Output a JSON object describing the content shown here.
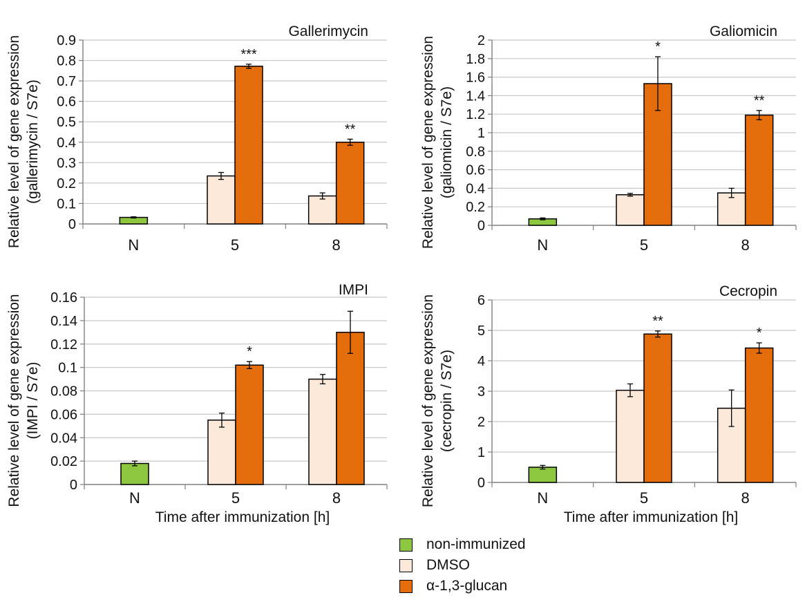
{
  "colors": {
    "non_immunized": "#8dc63f",
    "dmso": "#fde9d9",
    "glucan": "#e46c0a",
    "grid": "#c8c8c8",
    "axis": "#808080"
  },
  "chart_data": [
    {
      "type": "bar",
      "title": "Gallerimycin",
      "ylabel": "Relative level of gene expression",
      "ylabel2": "(gallerimycin / S7e)",
      "xlabel": "",
      "categories": [
        "N",
        "5",
        "8"
      ],
      "ylim": [
        0,
        0.9
      ],
      "yticks": [
        "0",
        "0.1",
        "0.2",
        "0.3",
        "0.4",
        "0.5",
        "0.6",
        "0.7",
        "0.8",
        "0.9"
      ],
      "grid": true,
      "series": [
        {
          "name": "non-immunized",
          "values": [
            0.032,
            null,
            null
          ],
          "errors": [
            0.003,
            null,
            null
          ]
        },
        {
          "name": "DMSO",
          "values": [
            null,
            0.235,
            0.137
          ],
          "errors": [
            null,
            0.017,
            0.015
          ]
        },
        {
          "name": "α-1,3-glucan",
          "values": [
            null,
            0.772,
            0.4
          ],
          "errors": [
            null,
            0.01,
            0.015
          ]
        }
      ],
      "annotations": [
        {
          "category": "5",
          "series": "α-1,3-glucan",
          "text": "***"
        },
        {
          "category": "8",
          "series": "α-1,3-glucan",
          "text": "**"
        }
      ]
    },
    {
      "type": "bar",
      "title": "Galiomicin",
      "ylabel": "Relative level of gene expression",
      "ylabel2": "(galiomicin / S7e)",
      "xlabel": "",
      "categories": [
        "N",
        "5",
        "8"
      ],
      "ylim": [
        0,
        2
      ],
      "yticks": [
        "0",
        "0.2",
        "0.4",
        "0.6",
        "0.8",
        "1",
        "1.2",
        "1.4",
        "1.6",
        "1.8",
        "2"
      ],
      "grid": true,
      "series": [
        {
          "name": "non-immunized",
          "values": [
            0.07,
            null,
            null
          ],
          "errors": [
            0.01,
            null,
            null
          ]
        },
        {
          "name": "DMSO",
          "values": [
            null,
            0.33,
            0.35
          ],
          "errors": [
            null,
            0.015,
            0.05
          ]
        },
        {
          "name": "α-1,3-glucan",
          "values": [
            null,
            1.53,
            1.19
          ],
          "errors": [
            null,
            0.29,
            0.05
          ]
        }
      ],
      "annotations": [
        {
          "category": "5",
          "series": "α-1,3-glucan",
          "text": "*"
        },
        {
          "category": "8",
          "series": "α-1,3-glucan",
          "text": "**"
        }
      ]
    },
    {
      "type": "bar",
      "title": "IMPI",
      "ylabel": "Relative level of gene expression",
      "ylabel2": "(IMPI / S7e)",
      "xlabel": "Time after immunization [h]",
      "categories": [
        "N",
        "5",
        "8"
      ],
      "ylim": [
        0,
        0.16
      ],
      "yticks": [
        "0",
        "0.02",
        "0.04",
        "0.06",
        "0.08",
        "0.1",
        "0.12",
        "0.14",
        "0.16"
      ],
      "grid": true,
      "series": [
        {
          "name": "non-immunized",
          "values": [
            0.018,
            null,
            null
          ],
          "errors": [
            0.002,
            null,
            null
          ]
        },
        {
          "name": "DMSO",
          "values": [
            null,
            0.055,
            0.09
          ],
          "errors": [
            null,
            0.006,
            0.004
          ]
        },
        {
          "name": "α-1,3-glucan",
          "values": [
            null,
            0.102,
            0.13
          ],
          "errors": [
            null,
            0.003,
            0.018
          ]
        }
      ],
      "annotations": [
        {
          "category": "5",
          "series": "α-1,3-glucan",
          "text": "*"
        }
      ]
    },
    {
      "type": "bar",
      "title": "Cecropin",
      "ylabel": "Relative level of gene expression",
      "ylabel2": "(cecropin / S7e)",
      "xlabel": "Time after immunization [h]",
      "categories": [
        "N",
        "5",
        "8"
      ],
      "ylim": [
        0,
        6
      ],
      "yticks": [
        "0",
        "1",
        "2",
        "3",
        "4",
        "5",
        "6"
      ],
      "grid": true,
      "series": [
        {
          "name": "non-immunized",
          "values": [
            0.5,
            null,
            null
          ],
          "errors": [
            0.06,
            null,
            null
          ]
        },
        {
          "name": "DMSO",
          "values": [
            null,
            3.03,
            2.44
          ],
          "errors": [
            null,
            0.21,
            0.6
          ]
        },
        {
          "name": "α-1,3-glucan",
          "values": [
            null,
            4.88,
            4.42
          ],
          "errors": [
            null,
            0.1,
            0.17
          ]
        }
      ],
      "annotations": [
        {
          "category": "5",
          "series": "α-1,3-glucan",
          "text": "**"
        },
        {
          "category": "8",
          "series": "α-1,3-glucan",
          "text": "*"
        }
      ]
    }
  ],
  "legend": [
    {
      "label": "non-immunized",
      "color": "#8dc63f"
    },
    {
      "label": "DMSO",
      "color": "#fde9d9"
    },
    {
      "label": "α-1,3-glucan",
      "color": "#e46c0a"
    }
  ]
}
